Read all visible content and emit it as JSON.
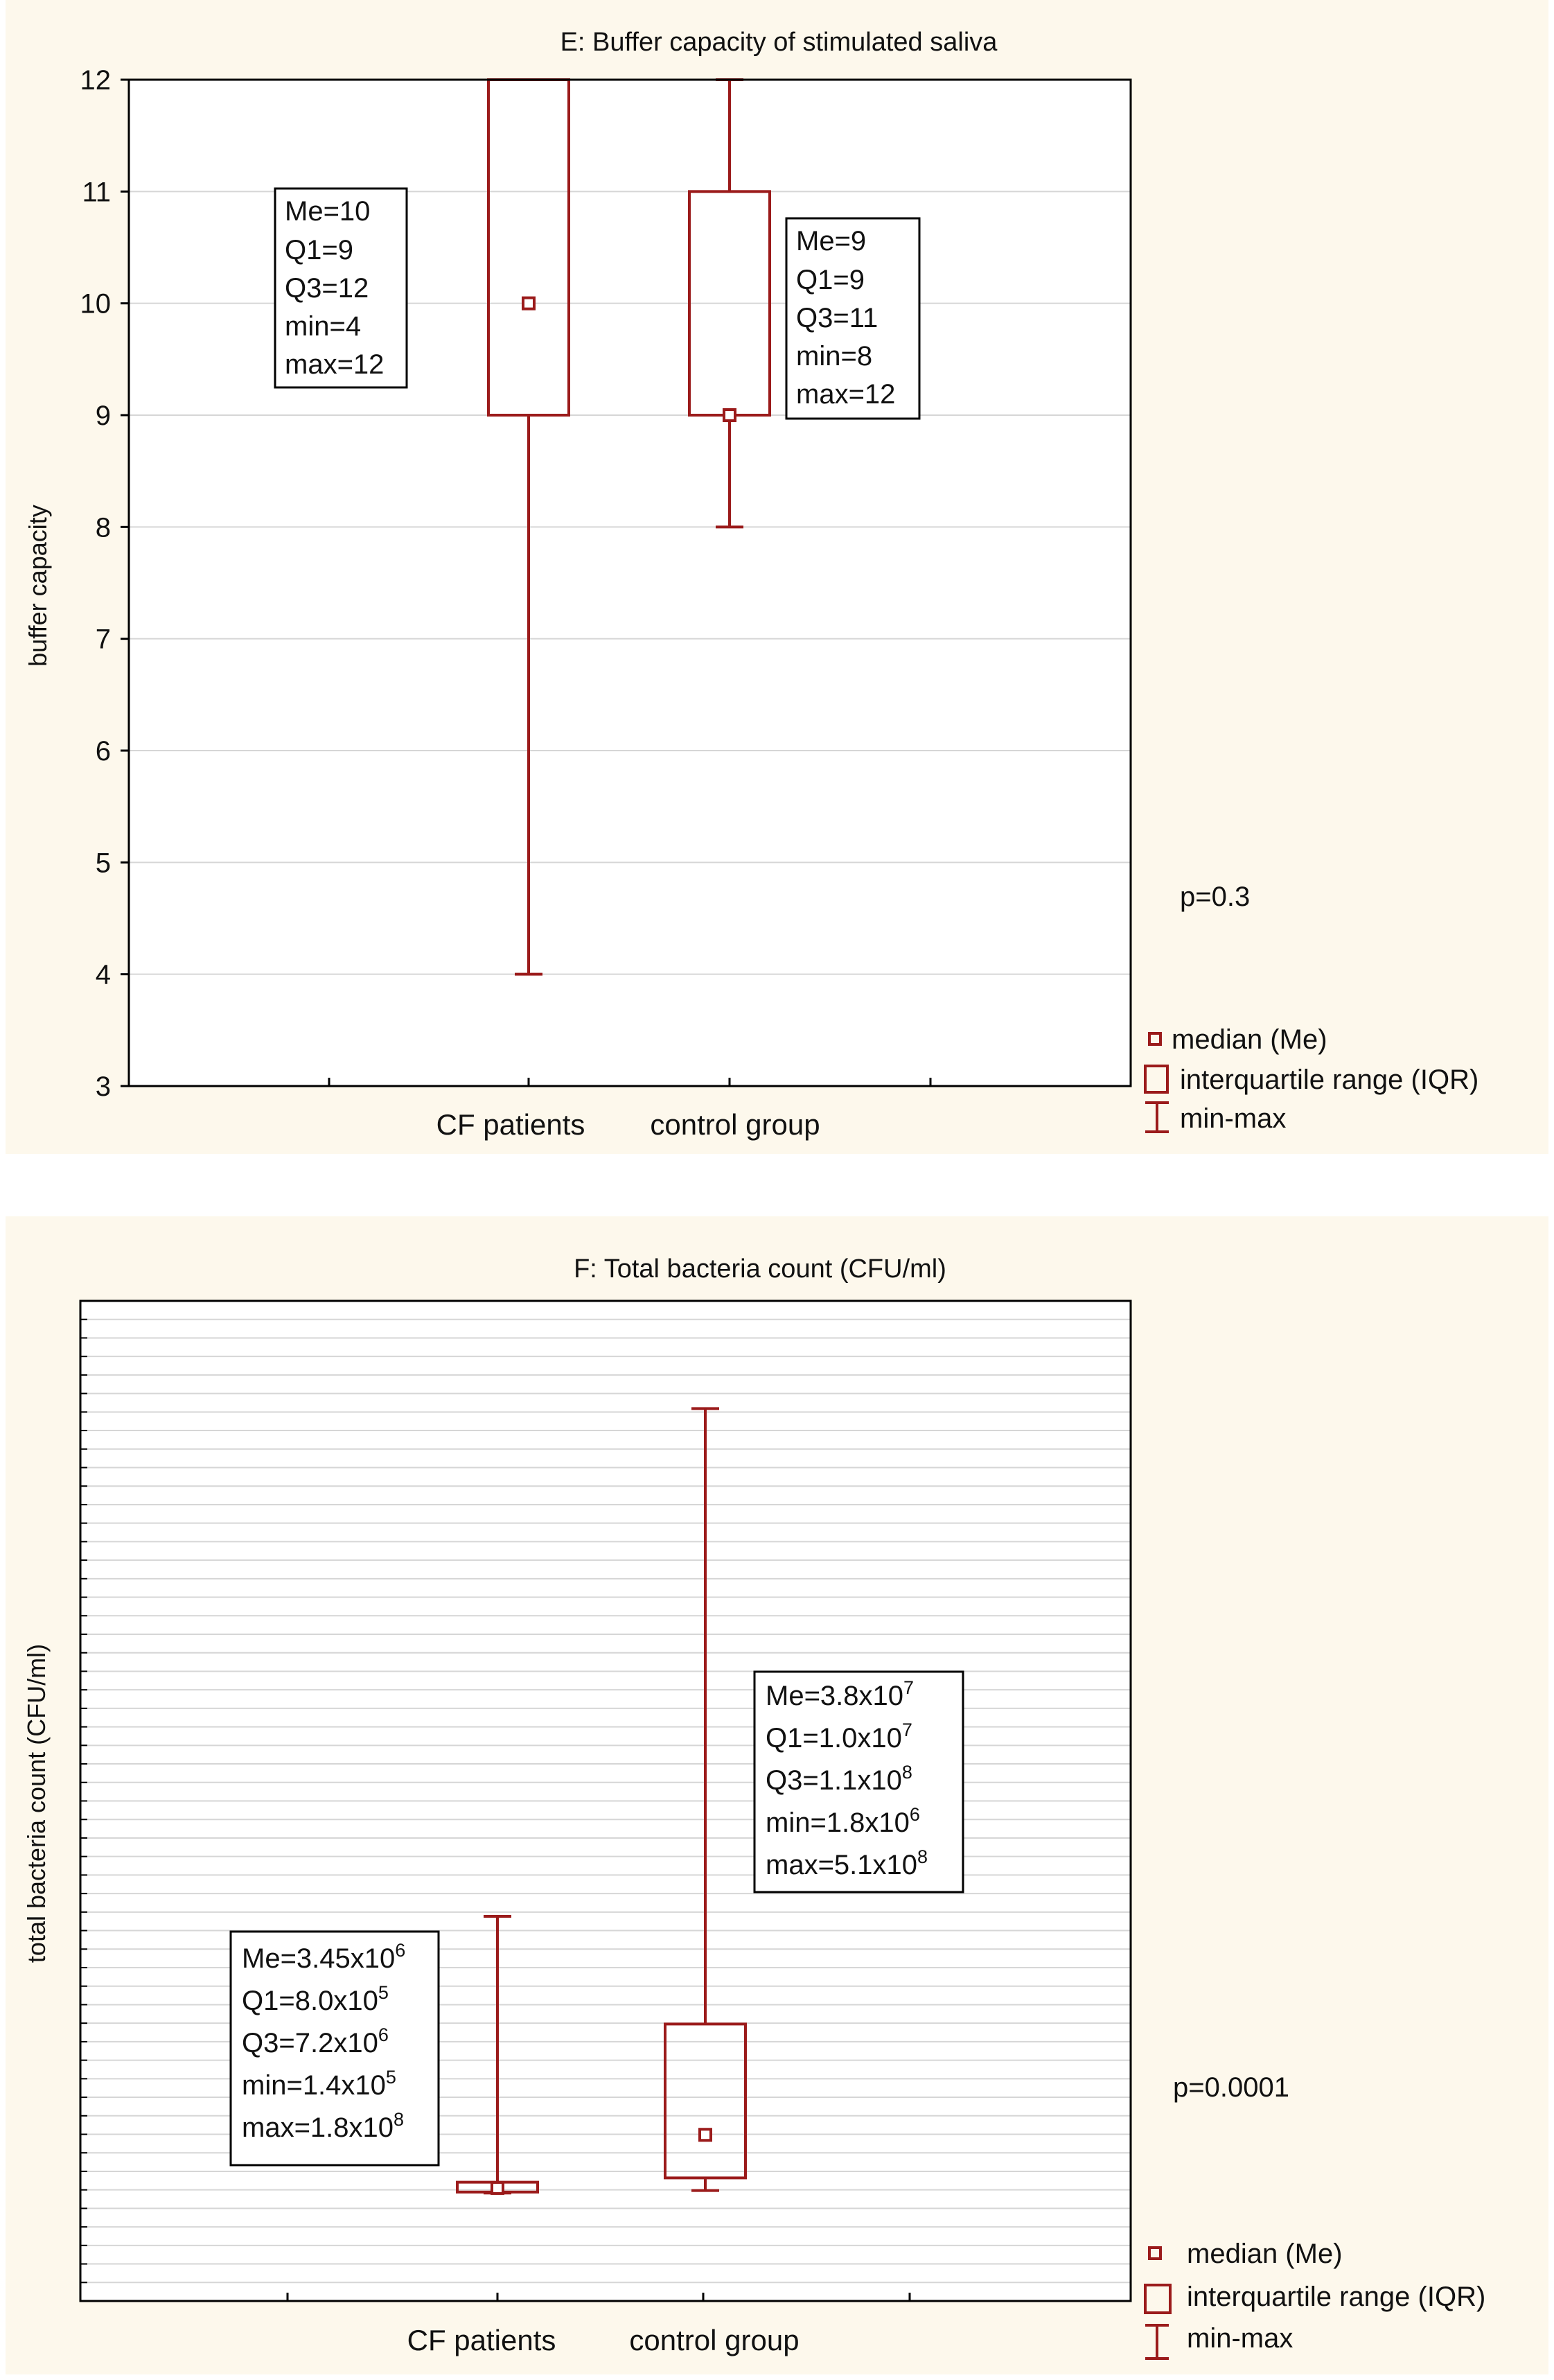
{
  "chart_data": [
    {
      "type": "box",
      "title": "E: Buffer capacity of stimulated saliva",
      "ylabel": "buffer capacity",
      "xlabel": "",
      "ylim": [
        3,
        12
      ],
      "yticks": [
        3,
        4,
        5,
        6,
        7,
        8,
        9,
        10,
        11,
        12
      ],
      "categories": [
        "CF patients",
        "control group"
      ],
      "series": [
        {
          "name": "CF patients",
          "median": 10,
          "q1": 9,
          "q3": 12,
          "min": 4,
          "max": 12,
          "stats": [
            "Me=10",
            "Q1=9",
            "Q3=12",
            "min=4",
            "max=12"
          ]
        },
        {
          "name": "control group",
          "median": 9,
          "q1": 9,
          "q3": 11,
          "min": 8,
          "max": 12,
          "stats": [
            "Me=9",
            "Q1=9",
            "Q3=11",
            "min=8",
            "max=12"
          ]
        }
      ],
      "p_value": "p=0.3",
      "legend": [
        "median (Me)",
        "interquartile range (IQR)",
        "min-max"
      ],
      "grid": true
    },
    {
      "type": "box",
      "title": "F:  Total bacteria count (CFU/ml)",
      "ylabel": "total bacteria count (CFU/ml)",
      "xlabel": "",
      "ylim": [
        -70000000,
        580000000
      ],
      "categories": [
        "CF patients",
        "control group"
      ],
      "series": [
        {
          "name": "CF patients",
          "median": 3450000,
          "q1": 800000,
          "q3": 7200000,
          "min": 140000,
          "max": 180000000,
          "stats": [
            {
              "base": "Me=3.45x10",
              "exp": "6"
            },
            {
              "base": "Q1=8.0x10",
              "exp": "5"
            },
            {
              "base": "Q3=7.2x10",
              "exp": "6"
            },
            {
              "base": "min=1.4x10",
              "exp": "5"
            },
            {
              "base": "max=1.8x10",
              "exp": "8"
            }
          ]
        },
        {
          "name": "control group",
          "median": 38000000,
          "q1": 10000000,
          "q3": 110000000,
          "min": 1800000,
          "max": 510000000,
          "stats": [
            {
              "base": "Me=3.8x10",
              "exp": "7"
            },
            {
              "base": "Q1=1.0x10",
              "exp": "7"
            },
            {
              "base": "Q3=1.1x10",
              "exp": "8"
            },
            {
              "base": "min=1.8x10",
              "exp": "6"
            },
            {
              "base": "max=5.1x10",
              "exp": "8"
            }
          ]
        }
      ],
      "p_value": "p=0.0001",
      "legend": [
        "median (Me)",
        "interquartile range (IQR)",
        "min-max"
      ],
      "grid": true
    }
  ],
  "colors": {
    "series": "#9b1b1b",
    "panel_bg": "#fdf8ec",
    "grid": "#d6d6d6",
    "axis": "#000000"
  }
}
